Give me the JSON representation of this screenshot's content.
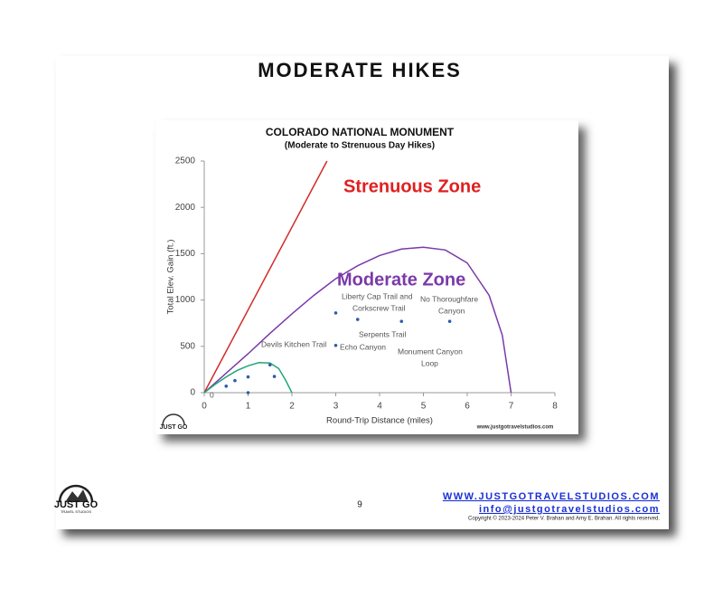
{
  "header": {
    "title": "MODERATE HIKES"
  },
  "chart_data": {
    "type": "line",
    "title": "COLORADO NATIONAL MONUMENT",
    "subtitle": "(Moderate to Strenuous Day Hikes)",
    "x_label": "Round-Trip Distance (miles)",
    "y_label": "Total Elev. Gain (ft.)",
    "xlim": [
      0,
      8
    ],
    "xticks": [
      0,
      1,
      2,
      3,
      4,
      5,
      6,
      7,
      8
    ],
    "ylim": [
      0,
      2500
    ],
    "yticks": [
      0,
      500,
      1000,
      1500,
      2000,
      2500
    ],
    "grid": false,
    "series": [
      {
        "type": "line",
        "color": "#d42a2a",
        "x": [
          0,
          2.8
        ],
        "values": [
          0,
          2500
        ]
      },
      {
        "type": "line",
        "color": "#7a3aa8",
        "x": [
          0,
          0.5,
          1,
          1.5,
          2,
          2.5,
          3,
          3.5,
          4,
          4.5,
          5,
          5.5,
          6,
          6.5,
          6.8,
          7
        ],
        "values": [
          0,
          210,
          420,
          640,
          850,
          1050,
          1230,
          1370,
          1480,
          1550,
          1570,
          1540,
          1400,
          1050,
          620,
          0
        ]
      },
      {
        "type": "line",
        "color": "#1fa67c",
        "x": [
          0,
          0.25,
          0.5,
          0.75,
          1,
          1.25,
          1.5,
          1.7,
          1.85,
          2
        ],
        "values": [
          0,
          90,
          170,
          240,
          290,
          325,
          320,
          260,
          140,
          0
        ]
      },
      {
        "type": "scatter",
        "color": "#2a5fa8",
        "x": [
          0.5,
          0.7,
          1,
          1,
          1.5,
          1.6,
          3,
          3,
          3.5,
          4.5,
          5.6
        ],
        "values": [
          70,
          130,
          170,
          0,
          300,
          175,
          860,
          510,
          790,
          770,
          770
        ]
      }
    ],
    "annotations": [
      "Strenuous Zone",
      "Moderate Zone",
      "Devils Kitchen Trail",
      "Liberty Cap Trail and",
      "Corkscrew Trail",
      "No Thoroughfare",
      "Canyon",
      "Serpents Trail",
      "Echo Canyon",
      "Monument Canyon",
      "Loop",
      "0"
    ],
    "source": "www.justgotravelstudios.com",
    "logo": "JUST GO"
  },
  "footer": {
    "page": "9",
    "website": "WWW.JUSTGOTRAVELSTUDIOS.COM",
    "email": "info@justgotravelstudios.com",
    "copyright": "Copyright © 2023-2024 Peter V. Brahan and Amy E. Brahan.  All rights reserved.",
    "logo": "JUST GO",
    "logo_sub": "TRAVEL STUDIOS"
  }
}
